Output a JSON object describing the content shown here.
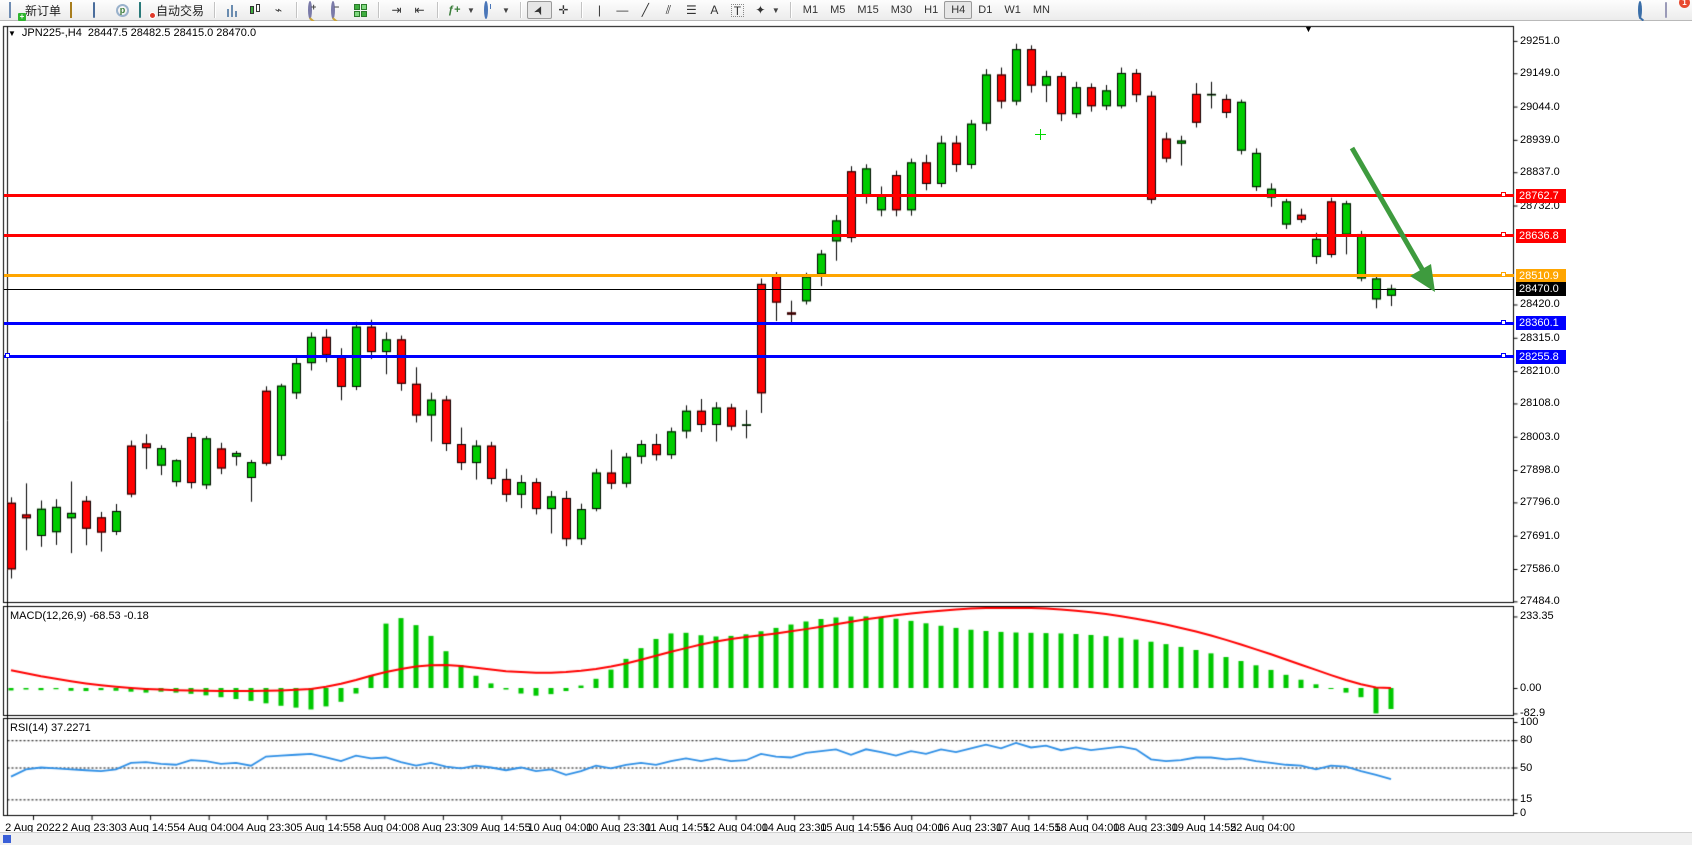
{
  "toolbar": {
    "new_order_label": "新订单",
    "auto_trading_label": "自动交易",
    "text_icon_a": "A",
    "text_icon_t": "T",
    "timeframes": [
      "M1",
      "M5",
      "M15",
      "M30",
      "H1",
      "H4",
      "D1",
      "W1",
      "MN"
    ],
    "selected_timeframe": "H4",
    "notification_count": "1",
    "icon_names": [
      "new-order-icon",
      "highlighter-icon",
      "market-watch-icon",
      "profile-icon",
      "auto-trading-icon",
      "bar-chart-icon",
      "candlestick-chart-icon",
      "line-chart-icon",
      "zoom-in-icon",
      "zoom-out-icon",
      "tile-windows-icon",
      "auto-scroll-icon",
      "chart-shift-icon",
      "indicators-icon",
      "periods-icon",
      "cursor-icon",
      "crosshair-icon",
      "vertical-line-icon",
      "horizontal-line-icon",
      "trendline-icon",
      "channel-icon",
      "fibonacci-icon",
      "text-icon",
      "label-icon",
      "arrows-icon",
      "search-icon",
      "chat-icon"
    ]
  },
  "chart": {
    "title": {
      "symbol_period": "JPN225-,H4",
      "ohlc": "28447.5 28482.5 28415.0 28470.0",
      "dropdown_glyph": "▼"
    },
    "shift_marker_glyph": "▼",
    "colors": {
      "bull": "#00cc00",
      "bear": "#ff0000",
      "wick": "#000000",
      "macd_hist": "#00c800",
      "macd_signal": "#ff0000",
      "rsi_line": "#2e8fe6",
      "line_red": "#ff0000",
      "line_orange": "#ffa500",
      "line_blue": "#0000ff",
      "current": "#000000",
      "arrow_green": "#3e9b3e"
    },
    "y_axis": {
      "ticks": [
        29251.0,
        29149.0,
        29044.0,
        28939.0,
        28837.0,
        28732.0,
        28420.0,
        28315.0,
        28210.0,
        28108.0,
        28003.0,
        27898.0,
        27796.0,
        27691.0,
        27586.0,
        27484.0
      ]
    },
    "price_lines": [
      {
        "value": 28762.7,
        "label": "28762.7",
        "kind": "red"
      },
      {
        "value": 28636.8,
        "label": "28636.8",
        "kind": "red"
      },
      {
        "value": 28510.9,
        "label": "28510.9",
        "kind": "orange"
      },
      {
        "value": 28360.1,
        "label": "28360.1",
        "kind": "blue"
      },
      {
        "value": 28255.8,
        "label": "28255.8",
        "kind": "blue",
        "left_handle": true
      }
    ],
    "current_price": {
      "value": 28470.0,
      "label": "28470.0"
    },
    "time_axis": [
      "2 Aug 2022",
      "2 Aug 23:30",
      "3 Aug 14:55",
      "4 Aug 04:00",
      "4 Aug 23:30",
      "5 Aug 14:55",
      "8 Aug 04:00",
      "8 Aug 23:30",
      "9 Aug 14:55",
      "10 Aug 04:00",
      "10 Aug 23:30",
      "11 Aug 14:55",
      "12 Aug 04:00",
      "14 Aug 23:30",
      "15 Aug 14:55",
      "16 Aug 04:00",
      "16 Aug 23:30",
      "17 Aug 14:55",
      "18 Aug 04:00",
      "18 Aug 23:30",
      "19 Aug 14:55",
      "22 Aug 04:00"
    ],
    "chart_data": {
      "type": "candlestick",
      "symbol": "JPN225-",
      "period": "H4",
      "ylim": [
        27482,
        29298
      ],
      "bars": [
        [
          27795,
          27812,
          27556,
          27585
        ],
        [
          27758,
          27856,
          27645,
          27746
        ],
        [
          27690,
          27802,
          27656,
          27776
        ],
        [
          27702,
          27806,
          27662,
          27782
        ],
        [
          27746,
          27862,
          27636,
          27763
        ],
        [
          27801,
          27816,
          27661,
          27713
        ],
        [
          27749,
          27766,
          27641,
          27701
        ],
        [
          27703,
          27791,
          27693,
          27769
        ],
        [
          27975,
          27991,
          27812,
          27821
        ],
        [
          27982,
          28011,
          27901,
          27967
        ],
        [
          27912,
          27976,
          27882,
          27967
        ],
        [
          27860,
          27932,
          27846,
          27929
        ],
        [
          28002,
          28015,
          27840,
          27857
        ],
        [
          27850,
          28005,
          27838,
          27998
        ],
        [
          27966,
          27984,
          27885,
          27903
        ],
        [
          27940,
          27958,
          27912,
          27952
        ],
        [
          27873,
          27930,
          27798,
          27923
        ],
        [
          28148,
          28162,
          27912,
          27918
        ],
        [
          27943,
          28170,
          27930,
          28164
        ],
        [
          28140,
          28252,
          28122,
          28235
        ],
        [
          28235,
          28332,
          28212,
          28318
        ],
        [
          28318,
          28342,
          28238,
          28260
        ],
        [
          28255,
          28282,
          28118,
          28160
        ],
        [
          28160,
          28365,
          28150,
          28350
        ],
        [
          28350,
          28372,
          28248,
          28270
        ],
        [
          28270,
          28332,
          28200,
          28310
        ],
        [
          28310,
          28322,
          28148,
          28170
        ],
        [
          28170,
          28222,
          28048,
          28070
        ],
        [
          28070,
          28142,
          27988,
          28120
        ],
        [
          28120,
          28132,
          27958,
          27980
        ],
        [
          27980,
          28032,
          27898,
          27920
        ],
        [
          27920,
          27992,
          27868,
          27975
        ],
        [
          27975,
          27987,
          27853,
          27870
        ],
        [
          27870,
          27902,
          27798,
          27820
        ],
        [
          27820,
          27882,
          27778,
          27860
        ],
        [
          27860,
          27872,
          27758,
          27775
        ],
        [
          27775,
          27832,
          27698,
          27815
        ],
        [
          27810,
          27832,
          27658,
          27680
        ],
        [
          27680,
          27792,
          27662,
          27775
        ],
        [
          27775,
          27902,
          27768,
          27890
        ],
        [
          27890,
          27962,
          27838,
          27855
        ],
        [
          27855,
          27952,
          27843,
          27940
        ],
        [
          27940,
          27992,
          27918,
          27980
        ],
        [
          27980,
          28012,
          27928,
          27945
        ],
        [
          27945,
          28032,
          27933,
          28020
        ],
        [
          28020,
          28102,
          27998,
          28085
        ],
        [
          28085,
          28122,
          28018,
          28040
        ],
        [
          28040,
          28112,
          27988,
          28095
        ],
        [
          28095,
          28107,
          28023,
          28035
        ],
        [
          28040,
          28087,
          27998,
          28042
        ],
        [
          28485,
          28502,
          28078,
          28140
        ],
        [
          28512,
          28522,
          28368,
          28426
        ],
        [
          28395,
          28432,
          28358,
          28388
        ],
        [
          28430,
          28520,
          28420,
          28508
        ],
        [
          28515,
          28592,
          28478,
          28580
        ],
        [
          28619,
          28702,
          28558,
          28685
        ],
        [
          28840,
          28856,
          28616,
          28630
        ],
        [
          28764,
          28862,
          28738,
          28849
        ],
        [
          28717,
          28792,
          28698,
          28764
        ],
        [
          28828,
          28842,
          28698,
          28717
        ],
        [
          28717,
          28880,
          28700,
          28868
        ],
        [
          28868,
          28892,
          28780,
          28800
        ],
        [
          28800,
          28952,
          28790,
          28930
        ],
        [
          28930,
          28952,
          28838,
          28860
        ],
        [
          28860,
          29002,
          28848,
          28990
        ],
        [
          28990,
          29162,
          28968,
          29145
        ],
        [
          29145,
          29167,
          29038,
          29060
        ],
        [
          29060,
          29242,
          29048,
          29225
        ],
        [
          29225,
          29237,
          29088,
          29110
        ],
        [
          29110,
          29157,
          29058,
          29140
        ],
        [
          29140,
          29152,
          28998,
          29020
        ],
        [
          29020,
          29122,
          29008,
          29105
        ],
        [
          29105,
          29117,
          29028,
          29045
        ],
        [
          29045,
          29112,
          29033,
          29095
        ],
        [
          29045,
          29167,
          29038,
          29150
        ],
        [
          29150,
          29162,
          29058,
          29080
        ],
        [
          29078,
          29092,
          28738,
          28750
        ],
        [
          28943,
          28962,
          28868,
          28880
        ],
        [
          28927,
          28952,
          28858,
          28937
        ],
        [
          29084,
          29118,
          28978,
          28993
        ],
        [
          29080,
          29122,
          29038,
          29084
        ],
        [
          29068,
          29082,
          29008,
          29024
        ],
        [
          28905,
          29066,
          28893,
          29059
        ],
        [
          28790,
          28912,
          28778,
          28898
        ],
        [
          28757,
          28802,
          28728,
          28785
        ],
        [
          28672,
          28753,
          28658,
          28745
        ],
        [
          28703,
          28722,
          28678,
          28687
        ],
        [
          28570,
          28646,
          28548,
          28627
        ],
        [
          28745,
          28757,
          28568,
          28576
        ],
        [
          28640,
          28747,
          28578,
          28739
        ],
        [
          28502,
          28652,
          28493,
          28640
        ],
        [
          28436,
          28512,
          28408,
          28502
        ],
        [
          28447.5,
          28482.5,
          28415,
          28470
        ]
      ]
    },
    "macd": {
      "label": "MACD(12,26,9)",
      "values_text": "-68.53 -0.18",
      "axis_ticks": [
        233.35,
        0.0,
        -82.9
      ],
      "axis_tick_labels": [
        "233.35",
        "0.00",
        "-82.9"
      ],
      "histogram": [
        -8,
        -5,
        -7,
        -4,
        -9,
        -10,
        -7,
        -9,
        -12,
        -15,
        -12,
        -15,
        -19,
        -24,
        -30,
        -36,
        -42,
        -50,
        -58,
        -64,
        -70,
        -60,
        -45,
        -18,
        40,
        210,
        228,
        205,
        170,
        120,
        75,
        40,
        15,
        -5,
        -18,
        -25,
        -20,
        -10,
        8,
        30,
        60,
        95,
        130,
        160,
        178,
        180,
        172,
        168,
        170,
        175,
        185,
        196,
        207,
        217,
        225,
        230,
        233,
        233.35,
        231,
        226,
        219,
        211,
        203,
        196,
        190,
        186,
        183,
        181,
        180,
        179,
        178,
        176,
        173,
        169,
        164,
        158,
        151,
        143,
        134,
        124,
        113,
        101,
        88,
        74,
        59,
        43,
        27,
        12,
        -2,
        -15,
        -30,
        -82.9,
        -68.53
      ],
      "signal": [
        58,
        48,
        38,
        30,
        22,
        15,
        9,
        4,
        0,
        -3,
        -5,
        -7,
        -8,
        -9,
        -10,
        -10,
        -10,
        -9,
        -8,
        -6,
        -3,
        4,
        14,
        26,
        40,
        52,
        62,
        70,
        74,
        75,
        72,
        66,
        60,
        55,
        52,
        50,
        50,
        52,
        56,
        62,
        70,
        80,
        92,
        105,
        118,
        130,
        142,
        152,
        160,
        166,
        172,
        178,
        185,
        192,
        200,
        208,
        216,
        224,
        231,
        237,
        243,
        248,
        252,
        256,
        259,
        261,
        262,
        262,
        261,
        259,
        256,
        252,
        247,
        241,
        234,
        226,
        217,
        207,
        196,
        184,
        171,
        157,
        142,
        126,
        110,
        93,
        76,
        59,
        42,
        26,
        12,
        2,
        -0.18
      ]
    },
    "rsi": {
      "label": "RSI(14)",
      "value_text": "37.2271",
      "levels": [
        100,
        80,
        50,
        15,
        0
      ],
      "dashed_levels": [
        80,
        50,
        15
      ],
      "series": [
        40,
        48,
        50,
        49,
        48,
        47,
        46,
        48,
        55,
        56,
        54,
        53,
        58,
        57,
        54,
        55,
        52,
        62,
        63,
        64,
        65,
        61,
        57,
        63,
        60,
        61,
        56,
        52,
        55,
        51,
        49,
        52,
        50,
        47,
        50,
        46,
        48,
        42,
        46,
        52,
        49,
        53,
        55,
        53,
        57,
        60,
        57,
        60,
        57,
        58,
        65,
        62,
        61,
        66,
        68,
        70,
        64,
        70,
        67,
        63,
        68,
        65,
        70,
        67,
        71,
        75,
        71,
        77,
        72,
        74,
        69,
        72,
        69,
        71,
        73,
        70,
        59,
        57,
        58,
        61,
        61,
        59,
        60,
        57,
        55,
        53,
        52,
        48,
        52,
        51,
        46,
        42,
        37.23
      ]
    }
  }
}
